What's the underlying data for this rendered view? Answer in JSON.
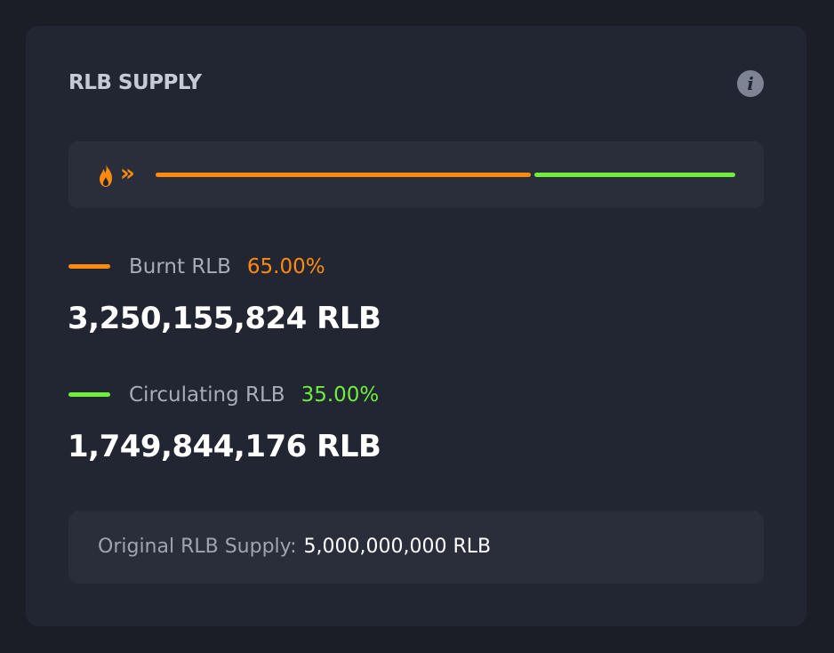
{
  "card": {
    "title": "RLB SUPPLY",
    "info_icon": "info-icon"
  },
  "progress": {
    "icons": [
      "fire-icon",
      "double-chevron-right-icon"
    ],
    "chevrons_glyph": "»",
    "burnt_fraction": 0.65,
    "circulating_fraction": 0.35
  },
  "burnt": {
    "label": "Burnt RLB",
    "percent": "65.00%",
    "amount": "3,250,155,824 RLB",
    "color": "#ff8a0d"
  },
  "circulating": {
    "label": "Circulating RLB",
    "percent": "35.00%",
    "amount": "1,749,844,176 RLB",
    "color": "#6fee3b"
  },
  "original": {
    "label": "Original RLB Supply:",
    "value": "5,000,000,000 RLB"
  }
}
